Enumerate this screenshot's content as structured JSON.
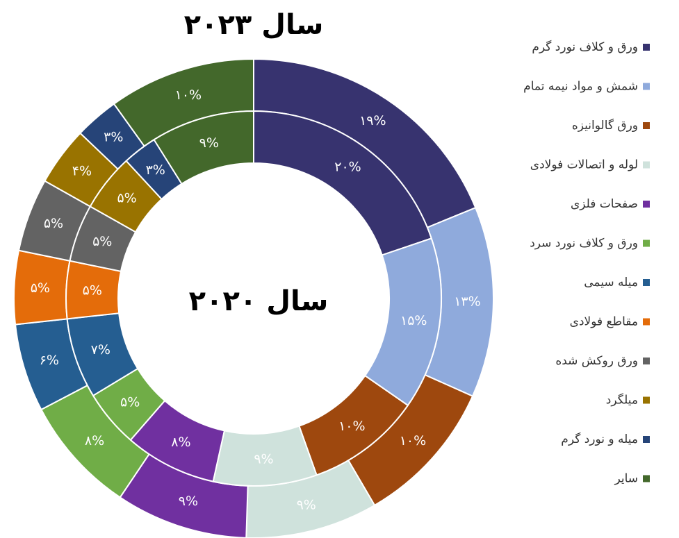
{
  "chart_data": {
    "type": "donut",
    "categories": [
      "ورق و کلاف نورد گرم",
      "شمش و مواد نیمه تمام",
      "ورق گالوانیزه",
      "لوله و اتصالات فولادی",
      "صفحات فلزی",
      "ورق و کلاف نورد سرد",
      "میله سیمی",
      "مقاطع فولادی",
      "ورق روکش شده",
      "میلگرد",
      "میله و نورد گرم",
      "سایر"
    ],
    "colors": [
      "#37336f",
      "#8faadc",
      "#9e480e",
      "#cfe2dc",
      "#7030a0",
      "#70ad47",
      "#255e91",
      "#e46c0a",
      "#636363",
      "#997300",
      "#264478",
      "#43682b"
    ],
    "series": [
      {
        "name": "سال ۲۰۲۳",
        "values": [
          19,
          13,
          10,
          9,
          9,
          8,
          6,
          5,
          5,
          4,
          3,
          10
        ],
        "value_labels": [
          "۱۹%",
          "۱۳%",
          "۱۰%",
          "۹%",
          "۹%",
          "۸%",
          "۶%",
          "۵%",
          "۵%",
          "۴%",
          "۳%",
          "۱۰%"
        ]
      },
      {
        "name": "سال ۲۰۲۰",
        "values": [
          20,
          15,
          10,
          9,
          8,
          5,
          7,
          5,
          5,
          5,
          3,
          9
        ],
        "value_labels": [
          "۲۰%",
          "۱۵%",
          "۱۰%",
          "۹%",
          "۸%",
          "۵%",
          "۷%",
          "۵%",
          "۵%",
          "۵%",
          "۳%",
          "۹%"
        ]
      }
    ]
  }
}
